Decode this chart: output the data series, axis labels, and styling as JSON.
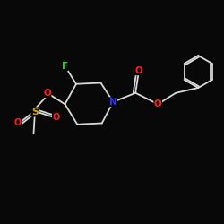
{
  "background_color": "#080808",
  "bond_color": "#d8d8d8",
  "atom_colors": {
    "N": "#3030ff",
    "O": "#ff2020",
    "F": "#30cc30",
    "S": "#ccaa00",
    "C": "#d8d8d8"
  },
  "font_size_atoms": 7.5,
  "line_width": 1.3,
  "figsize": [
    2.5,
    2.5
  ],
  "dpi": 100
}
